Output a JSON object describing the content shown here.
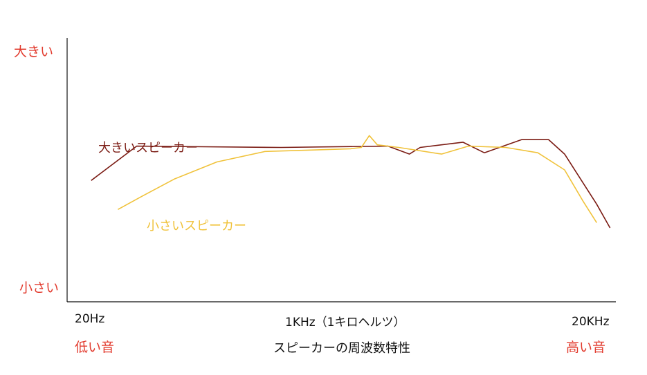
{
  "chart_data": {
    "type": "line",
    "title": "スピーカーの周波数特性",
    "y_top_label": "大きい",
    "y_bottom_label": "小さい",
    "x_ticks": [
      "20Hz",
      "1KHz（1キロヘルツ）",
      "20KHz"
    ],
    "x_low_label": "低い音",
    "x_high_label": "高い音",
    "grid": false,
    "xlim": [
      0,
      100
    ],
    "ylim": [
      0,
      100
    ],
    "series": [
      {
        "name": "大きいスピーカー",
        "color": "#7a1a12",
        "points": [
          [
            4.5,
            46
          ],
          [
            13,
            59
          ],
          [
            40,
            58.5
          ],
          [
            60,
            59
          ],
          [
            64,
            56
          ],
          [
            66,
            58.5
          ],
          [
            74,
            60.5
          ],
          [
            78,
            56.5
          ],
          [
            85,
            61.5
          ],
          [
            90,
            61.5
          ],
          [
            93,
            56
          ],
          [
            99,
            37
          ],
          [
            101.5,
            28
          ]
        ]
      },
      {
        "name": "小さいスピーカー",
        "color": "#f0c23a",
        "points": [
          [
            9.5,
            35
          ],
          [
            14,
            40
          ],
          [
            20,
            46.5
          ],
          [
            28,
            53
          ],
          [
            37,
            57
          ],
          [
            45,
            57.5
          ],
          [
            53,
            58
          ],
          [
            55,
            58.5
          ],
          [
            56.5,
            63
          ],
          [
            58,
            59.5
          ],
          [
            62,
            58.5
          ],
          [
            70,
            56
          ],
          [
            75,
            59
          ],
          [
            82,
            58.5
          ],
          [
            88,
            56.5
          ],
          [
            93,
            50
          ],
          [
            96.5,
            38
          ],
          [
            99,
            30
          ]
        ]
      }
    ]
  }
}
